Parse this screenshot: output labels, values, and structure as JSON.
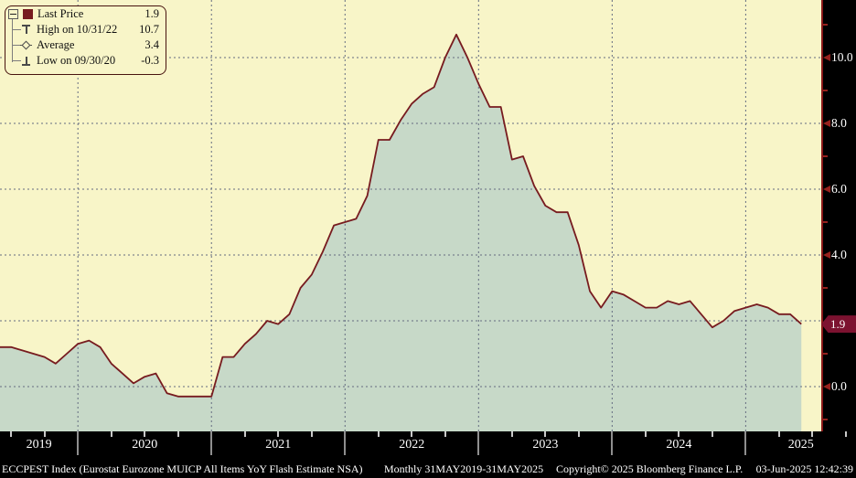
{
  "chart_data": {
    "type": "area",
    "title": "ECCPEST Index (Eurostat Eurozone MUICP All Items YoY Flash Estimate NSA)",
    "period": "Monthly 31MAY2019-31MAY2025",
    "frequency": "monthly",
    "start_date": "2019-05-31",
    "end_date": "2025-05-31",
    "values": [
      1.2,
      1.2,
      1.1,
      1.0,
      0.9,
      0.7,
      1.0,
      1.3,
      1.4,
      1.2,
      0.7,
      0.4,
      0.1,
      0.3,
      0.4,
      -0.2,
      -0.3,
      -0.3,
      -0.3,
      -0.3,
      0.9,
      0.9,
      1.3,
      1.6,
      2.0,
      1.9,
      2.2,
      3.0,
      3.4,
      4.1,
      4.9,
      5.0,
      5.1,
      5.8,
      7.5,
      7.5,
      8.1,
      8.6,
      8.9,
      9.1,
      10.0,
      10.7,
      10.0,
      9.2,
      8.5,
      8.5,
      6.9,
      7.0,
      6.1,
      5.5,
      5.3,
      5.3,
      4.3,
      2.9,
      2.4,
      2.9,
      2.8,
      2.6,
      2.4,
      2.4,
      2.6,
      2.5,
      2.6,
      2.2,
      1.8,
      2.0,
      2.3,
      2.4,
      2.5,
      2.4,
      2.2,
      2.2,
      1.9
    ],
    "last_price": 1.9,
    "high": {
      "date": "10/31/22",
      "value": 10.7
    },
    "low": {
      "date": "09/30/20",
      "value": -0.3
    },
    "average": 3.4,
    "ylim": [
      -1.4,
      11.75
    ],
    "grid": true,
    "legend_position": "top-left",
    "y_gridline_values": [
      0,
      2,
      4,
      6,
      8,
      10
    ],
    "y_major_ticks": [
      {
        "label": "10.0",
        "value": 10
      },
      {
        "label": "8.0",
        "value": 8
      },
      {
        "label": "6.0",
        "value": 6
      },
      {
        "label": "4.0",
        "value": 4
      },
      {
        "label": "0.0",
        "value": 0
      }
    ],
    "y_minor_tick_values": [
      11,
      9,
      7,
      5,
      3,
      1,
      -1
    ],
    "x_year_labels": [
      "2019",
      "2020",
      "2021",
      "2022",
      "2023",
      "2024",
      "2025"
    ]
  },
  "legend": {
    "rows": [
      {
        "marker": "last-price-square",
        "label": "Last Price",
        "value": "1.9"
      },
      {
        "marker": "high-marker",
        "label": "High on 10/31/22",
        "value": "10.7"
      },
      {
        "marker": "average-marker",
        "label": "Average",
        "value": "3.4"
      },
      {
        "marker": "low-marker",
        "label": "Low on 09/30/20",
        "value": "-0.3"
      }
    ]
  },
  "yaxis": {
    "badge_label": "1.9"
  },
  "footer": {
    "copyright": "Copyright© 2025 Bloomberg Finance L.P.",
    "datetime": "03-Jun-2025 12:42:39"
  },
  "colors": {
    "background": "#F8F5C8",
    "area_fill": "#C7D9C8",
    "line": "#771B1F",
    "gridline": "#646C80",
    "axis_line": "#8B1A1A",
    "tick_arrow": "#96221E",
    "badge_background": "#7C1230",
    "badge_text": "#FFFFFF",
    "strip_background": "#000000",
    "strip_text": "#FFFFFF"
  }
}
